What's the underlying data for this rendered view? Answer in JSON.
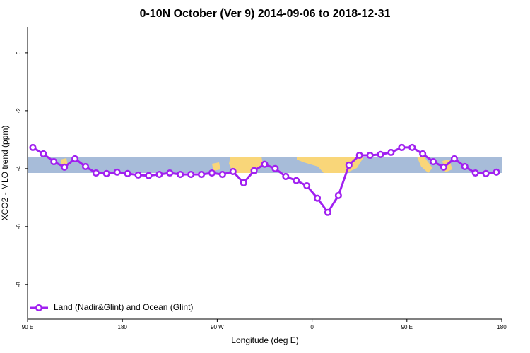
{
  "chart_data": {
    "type": "line",
    "title": "0-10N October (Ver 9)   2014-09-06 to 2018-12-31",
    "x_label": "Longitude (deg E)",
    "y_label": "XCO2 - MLO trend (ppm)",
    "x": [
      95,
      105,
      115,
      125,
      135,
      145,
      155,
      165,
      175,
      185,
      195,
      205,
      215,
      225,
      235,
      245,
      255,
      265,
      275,
      285,
      295,
      305,
      315,
      325,
      335,
      345,
      355,
      365,
      375,
      385,
      395,
      405,
      415,
      425,
      435,
      445,
      455,
      465,
      475,
      485,
      495,
      505,
      515,
      525,
      535
    ],
    "series": [
      {
        "name": "Land (Nadir&Glint) and Ocean (Glint)",
        "color": "#a020f0",
        "values": [
          -3.27,
          -3.49,
          -3.76,
          -3.95,
          -3.66,
          -3.93,
          -4.15,
          -4.17,
          -4.12,
          -4.17,
          -4.22,
          -4.24,
          -4.2,
          -4.15,
          -4.2,
          -4.2,
          -4.2,
          -4.15,
          -4.2,
          -4.1,
          -4.49,
          -4.07,
          -3.85,
          -4.0,
          -4.27,
          -4.41,
          -4.59,
          -5.02,
          -5.51,
          -4.93,
          -3.88,
          -3.54,
          -3.54,
          -3.51,
          -3.44,
          -3.27,
          -3.27,
          -3.49,
          -3.76,
          -3.95,
          -3.66,
          -3.93,
          -4.15,
          -4.17,
          -4.12
        ]
      }
    ],
    "xlim": [
      90,
      540
    ],
    "xticks": [
      {
        "value": 90,
        "label": "90 E"
      },
      {
        "value": 180,
        "label": "180"
      },
      {
        "value": 270,
        "label": "90 W"
      },
      {
        "value": 360,
        "label": "0"
      },
      {
        "value": 450,
        "label": "90 E"
      },
      {
        "value": 540,
        "label": "180"
      }
    ],
    "ylim": [
      -9.2,
      0.9
    ],
    "yticks": [
      0,
      -2,
      -4,
      -6,
      -8
    ],
    "legend": "bottom-left"
  }
}
